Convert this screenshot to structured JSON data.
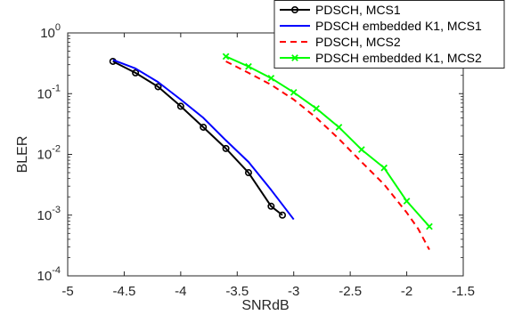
{
  "chart_data": {
    "type": "line",
    "xlabel": "SNRdB",
    "ylabel": "BLER",
    "xlim": [
      -5,
      -1.5
    ],
    "ylim": [
      0.0001,
      1
    ],
    "yscale": "log",
    "grid": false,
    "legend_position": "top-right",
    "x_ticks": [
      {
        "value": -5,
        "label": "-5"
      },
      {
        "value": -4.5,
        "label": "-4.5"
      },
      {
        "value": -4,
        "label": "-4"
      },
      {
        "value": -3.5,
        "label": "-3.5"
      },
      {
        "value": -3,
        "label": "-3"
      },
      {
        "value": -2.5,
        "label": "-2.5"
      },
      {
        "value": -2,
        "label": "-2"
      },
      {
        "value": -1.5,
        "label": "-1.5"
      }
    ],
    "y_ticks": [
      {
        "value": 0.0001,
        "base": "10",
        "exp": "-4"
      },
      {
        "value": 0.001,
        "base": "10",
        "exp": "-3"
      },
      {
        "value": 0.01,
        "base": "10",
        "exp": "-2"
      },
      {
        "value": 0.1,
        "base": "10",
        "exp": "-1"
      },
      {
        "value": 1,
        "base": "10",
        "exp": "0"
      }
    ],
    "series": [
      {
        "name": "PDSCH, MCS1",
        "color": "#000000",
        "style": "solid",
        "marker": "circle",
        "x": [
          -4.6,
          -4.4,
          -4.2,
          -4.0,
          -3.8,
          -3.6,
          -3.4,
          -3.2,
          -3.1
        ],
        "y": [
          0.34,
          0.22,
          0.13,
          0.062,
          0.028,
          0.0125,
          0.005,
          0.0014,
          0.001
        ]
      },
      {
        "name": "PDSCH embedded K1, MCS1",
        "color": "#0000ff",
        "style": "solid",
        "marker": "none",
        "x": [
          -4.6,
          -4.4,
          -4.2,
          -4.0,
          -3.8,
          -3.6,
          -3.4,
          -3.2,
          -3.0
        ],
        "y": [
          0.36,
          0.26,
          0.155,
          0.08,
          0.04,
          0.017,
          0.0075,
          0.0026,
          0.00085
        ]
      },
      {
        "name": "PDSCH, MCS2",
        "color": "#ff0000",
        "style": "dashed",
        "marker": "none",
        "x": [
          -3.6,
          -3.4,
          -3.2,
          -3.0,
          -2.8,
          -2.6,
          -2.4,
          -2.2,
          -2.0,
          -1.9,
          -1.8
        ],
        "y": [
          0.34,
          0.22,
          0.14,
          0.08,
          0.04,
          0.018,
          0.0075,
          0.0032,
          0.0011,
          0.0006,
          0.00027
        ]
      },
      {
        "name": "PDSCH embedded K1, MCS2",
        "color": "#00ff00",
        "style": "solid",
        "marker": "x",
        "x": [
          -3.6,
          -3.4,
          -3.2,
          -3.0,
          -2.8,
          -2.6,
          -2.4,
          -2.2,
          -2.0,
          -1.8
        ],
        "y": [
          0.41,
          0.28,
          0.18,
          0.105,
          0.057,
          0.028,
          0.012,
          0.006,
          0.0017,
          0.00065
        ]
      }
    ]
  }
}
